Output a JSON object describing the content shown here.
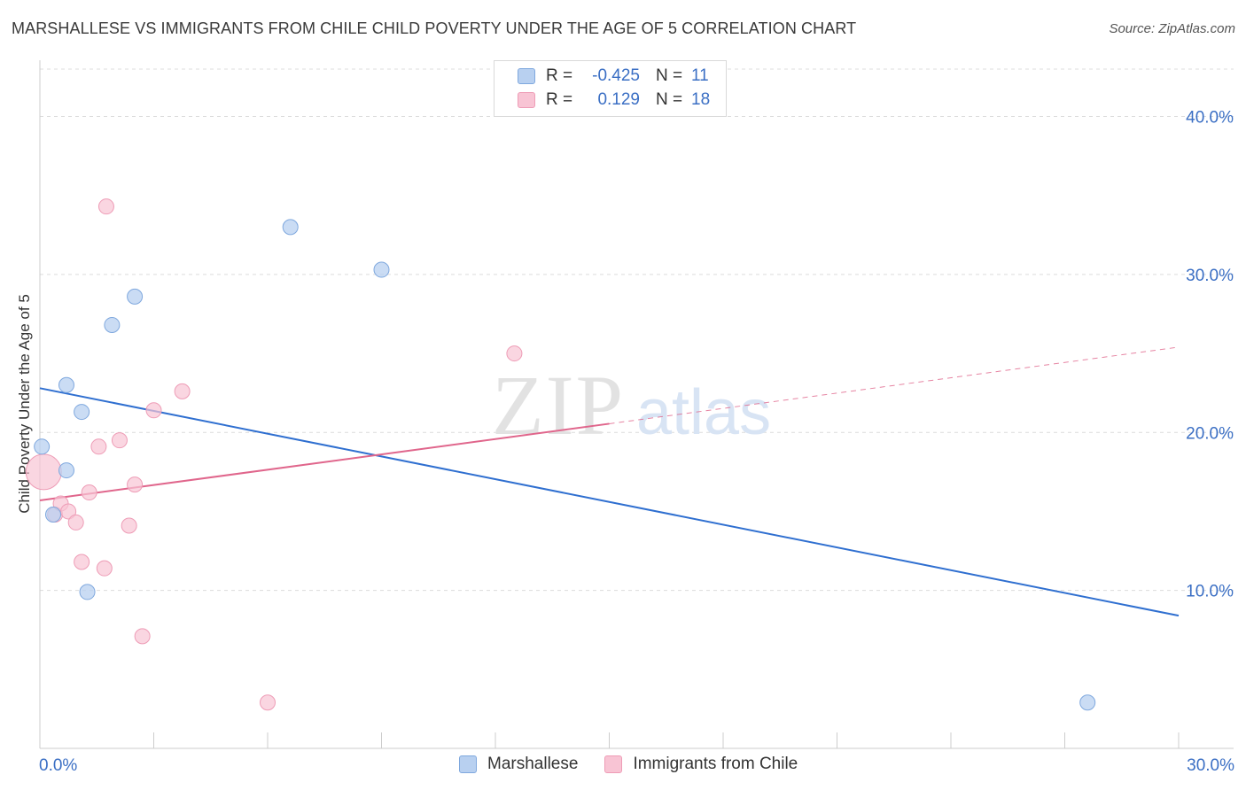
{
  "header": {
    "title": "MARSHALLESE VS IMMIGRANTS FROM CHILE CHILD POVERTY UNDER THE AGE OF 5 CORRELATION CHART",
    "source": "Source: ZipAtlas.com"
  },
  "watermark": {
    "zip": "ZIP",
    "atlas": "atlas"
  },
  "legend": {
    "rows": [
      {
        "r_label": "R =",
        "r_value": "-0.425",
        "n_label": "N =",
        "n_value": "11"
      },
      {
        "r_label": "R =",
        "r_value": "0.129",
        "n_label": "N =",
        "n_value": "18"
      }
    ]
  },
  "bottom_legend": {
    "series1": "Marshallese",
    "series2": "Immigrants from Chile"
  },
  "colors": {
    "blue_fill": "#b8d0f0",
    "blue_stroke": "#7fa8de",
    "blue_line": "#2f6fd0",
    "pink_fill": "#f8c4d4",
    "pink_stroke": "#ee9cb6",
    "pink_line": "#e0668c",
    "tick_label": "#3b6fc4",
    "grid": "#dcdcdc"
  },
  "chart_data": {
    "type": "scatter",
    "title": "MARSHALLESE VS IMMIGRANTS FROM CHILE CHILD POVERTY UNDER THE AGE OF 5 CORRELATION CHART",
    "xlabel": "",
    "ylabel": "Child Poverty Under the Age of 5",
    "xlim": [
      0,
      30
    ],
    "ylim": [
      0,
      43
    ],
    "x_tick_labels": [
      "0.0%",
      "30.0%"
    ],
    "y_ticks": [
      10,
      20,
      30,
      40
    ],
    "y_tick_labels": [
      "10.0%",
      "20.0%",
      "30.0%",
      "40.0%"
    ],
    "grid": true,
    "legend_position": "top-center",
    "series": [
      {
        "name": "Marshallese",
        "r": -0.425,
        "n": 11,
        "points": [
          [
            0.05,
            19.1
          ],
          [
            0.35,
            14.8
          ],
          [
            0.7,
            23.0
          ],
          [
            0.7,
            17.6
          ],
          [
            1.1,
            21.3
          ],
          [
            1.25,
            9.9
          ],
          [
            1.9,
            26.8
          ],
          [
            2.5,
            28.6
          ],
          [
            6.6,
            33.0
          ],
          [
            9.0,
            30.3
          ],
          [
            27.6,
            2.9
          ]
        ],
        "trend": {
          "x": [
            0,
            30
          ],
          "y": [
            22.8,
            8.4
          ]
        }
      },
      {
        "name": "Immigrants from Chile",
        "r": 0.129,
        "n": 18,
        "points": [
          [
            0.1,
            17.5
          ],
          [
            0.4,
            14.8
          ],
          [
            0.55,
            15.5
          ],
          [
            0.75,
            15.0
          ],
          [
            0.95,
            14.3
          ],
          [
            1.1,
            11.8
          ],
          [
            1.3,
            16.2
          ],
          [
            1.55,
            19.1
          ],
          [
            1.7,
            11.4
          ],
          [
            1.75,
            34.3
          ],
          [
            2.1,
            19.5
          ],
          [
            2.35,
            14.1
          ],
          [
            2.5,
            16.7
          ],
          [
            2.7,
            7.1
          ],
          [
            3.0,
            21.4
          ],
          [
            3.75,
            22.6
          ],
          [
            6.0,
            2.9
          ],
          [
            12.5,
            25.0
          ]
        ],
        "trend": {
          "x": [
            0,
            30
          ],
          "y": [
            15.7,
            25.4
          ],
          "solid_until_x": 15
        }
      }
    ]
  }
}
